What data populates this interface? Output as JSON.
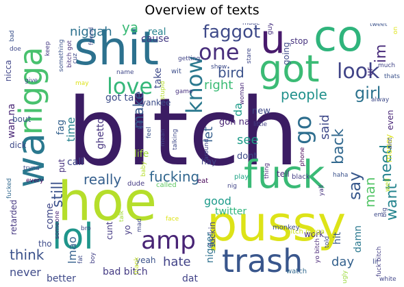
{
  "title": "Overview of texts",
  "words": [
    {
      "text": "bitch",
      "color": "#3b1c63"
    },
    {
      "text": "pussy",
      "color": "#dde318"
    },
    {
      "text": "hoe",
      "color": "#b5de2b"
    },
    {
      "text": "co",
      "color": "#2fb47c"
    },
    {
      "text": "u",
      "color": "#481a6c"
    },
    {
      "text": "shit",
      "color": "#2c718e"
    },
    {
      "text": "got",
      "color": "#3bbb75"
    },
    {
      "text": "fuck",
      "color": "#3aba76"
    },
    {
      "text": "nigga",
      "color": "#48c16e"
    },
    {
      "text": "wa",
      "color": "#2a788e"
    },
    {
      "text": "lol",
      "color": "#1f958b"
    },
    {
      "text": "trash",
      "color": "#39568c"
    },
    {
      "text": "amp",
      "color": "#482475"
    },
    {
      "text": "one",
      "color": "#472d7b"
    },
    {
      "text": "faggot",
      "color": "#3e4a89"
    },
    {
      "text": "love",
      "color": "#35b779"
    },
    {
      "text": "know",
      "color": "#2a788e"
    },
    {
      "text": "look",
      "color": "#404387"
    },
    {
      "text": "go",
      "color": "#2e6e8e"
    },
    {
      "text": "im",
      "color": "#472a7a"
    },
    {
      "text": "girl",
      "color": "#2c728e"
    },
    {
      "text": "people",
      "color": "#21918c"
    },
    {
      "text": "bird",
      "color": "#3b528b"
    },
    {
      "text": "niggah",
      "color": "#2c718e"
    },
    {
      "text": "ya",
      "color": "#3aba76"
    },
    {
      "text": "say",
      "color": "#38588c"
    },
    {
      "text": "want",
      "color": "#25848e"
    },
    {
      "text": "need",
      "color": "#25838e"
    },
    {
      "text": "man",
      "color": "#54c568"
    },
    {
      "text": "back",
      "color": "#31688e"
    },
    {
      "text": "said",
      "color": "#3e4989"
    },
    {
      "text": "really",
      "color": "#355f8d"
    },
    {
      "text": "fucking",
      "color": "#31668e"
    },
    {
      "text": "still",
      "color": "#3b528b"
    },
    {
      "text": "think",
      "color": "#3b528b"
    },
    {
      "text": "make",
      "color": "#375a8c"
    },
    {
      "text": "right",
      "color": "#3bbb75"
    },
    {
      "text": "let",
      "color": "#355f8d"
    },
    {
      "text": "see",
      "color": "#1e9c89"
    },
    {
      "text": "time",
      "color": "#26828e"
    },
    {
      "text": "hate",
      "color": "#414287"
    },
    {
      "text": "never",
      "color": "#3e4a89"
    },
    {
      "text": "good",
      "color": "#1e9b8a"
    },
    {
      "text": "day",
      "color": "#34618d"
    },
    {
      "text": "lmao",
      "color": "#35608d"
    },
    {
      "text": "nigger",
      "color": "#2d708e"
    },
    {
      "text": "wan na",
      "color": "#482576"
    },
    {
      "text": "fag",
      "color": "#34618d"
    },
    {
      "text": "call",
      "color": "#3f4889"
    },
    {
      "text": "life",
      "color": "#a2da37"
    },
    {
      "text": "dont",
      "color": "#3e4a89"
    },
    {
      "text": "tell",
      "color": "#472c7a"
    },
    {
      "text": "come",
      "color": "#3f4788"
    },
    {
      "text": "bad bitch",
      "color": "#443a83"
    },
    {
      "text": "better",
      "color": "#3e4989"
    },
    {
      "text": "damn",
      "color": "#2a788e"
    },
    {
      "text": "hit",
      "color": "#38588c"
    },
    {
      "text": "dat",
      "color": "#414287"
    },
    {
      "text": "twitter",
      "color": "#2fb47c"
    },
    {
      "text": "cause",
      "color": "#443983"
    },
    {
      "text": "real",
      "color": "#26828e"
    },
    {
      "text": "take",
      "color": "#3e4a89"
    },
    {
      "text": "got ta",
      "color": "#3d4d8a"
    },
    {
      "text": "yankee",
      "color": "#3d4e8a"
    },
    {
      "text": "ghetto",
      "color": "#46337f"
    },
    {
      "text": "gon na",
      "color": "#482475"
    },
    {
      "text": "new",
      "color": "#3f4889"
    },
    {
      "text": "stop",
      "color": "#46327e"
    },
    {
      "text": "going",
      "color": "#3e4a89"
    },
    {
      "text": "bout",
      "color": "#3b528b"
    },
    {
      "text": "dick",
      "color": "#3e4a89"
    },
    {
      "text": "retarded",
      "color": "#453781"
    },
    {
      "text": "tho",
      "color": "#3e4c8a"
    },
    {
      "text": "even",
      "color": "#482677"
    },
    {
      "text": "money",
      "color": "#dde318"
    },
    {
      "text": "yeah",
      "color": "#3b528b"
    },
    {
      "text": "hay",
      "color": "#414487"
    },
    {
      "text": "put",
      "color": "#46307e"
    },
    {
      "text": "yo",
      "color": "#443983"
    },
    {
      "text": "cunt",
      "color": "#443983"
    },
    {
      "text": "fuckin",
      "color": "#414487"
    },
    {
      "text": "da",
      "color": "#1e9c89"
    },
    {
      "text": "nicca",
      "color": "#404588"
    },
    {
      "text": "work",
      "color": "#46307e"
    },
    {
      "text": "ur",
      "color": "#482979"
    },
    {
      "text": "bitch nigga",
      "color": "#cde11d"
    },
    {
      "text": "monkey",
      "color": "#3e4c8a"
    },
    {
      "text": "black",
      "color": "#433e85"
    },
    {
      "text": "eat",
      "color": "#440154"
    },
    {
      "text": "play",
      "color": "#20a486"
    },
    {
      "text": "called",
      "color": "#5ec962"
    },
    {
      "text": "dude",
      "color": "#443a83"
    },
    {
      "text": "watch",
      "color": "#31688e"
    },
    {
      "text": "white",
      "color": "#404588"
    },
    {
      "text": "friend",
      "color": "#3e4989"
    },
    {
      "text": "tweet",
      "color": "#3b528b"
    },
    {
      "text": "made",
      "color": "#3f4889"
    },
    {
      "text": "guy",
      "color": "#46307e"
    },
    {
      "text": "stupid",
      "color": "#b5de2b"
    },
    {
      "text": "show",
      "color": "#3e4c8a"
    },
    {
      "text": "woman",
      "color": "#482878"
    },
    {
      "text": "game",
      "color": "#46307e"
    },
    {
      "text": "phone",
      "color": "#440154"
    },
    {
      "text": "little",
      "color": "#424086"
    },
    {
      "text": "thing",
      "color": "#482677"
    },
    {
      "text": "much",
      "color": "#414487"
    },
    {
      "text": "thats",
      "color": "#3b528b"
    },
    {
      "text": "alway",
      "color": "#3e4a89"
    },
    {
      "text": "aint",
      "color": "#3d4e8a"
    },
    {
      "text": "lil",
      "color": "#3e4c8a"
    },
    {
      "text": "em",
      "color": "#3e4989"
    },
    {
      "text": "haha",
      "color": "#3b528b"
    },
    {
      "text": "yall",
      "color": "#46327e"
    },
    {
      "text": "fuck bitch",
      "color": "#433e85"
    },
    {
      "text": "yo bitch",
      "color": "#482677"
    },
    {
      "text": "told",
      "color": "#3f4889"
    },
    {
      "text": "ugly",
      "color": "#9bd93c"
    },
    {
      "text": "face",
      "color": "#dde318"
    },
    {
      "text": "mad",
      "color": "#3f4788"
    },
    {
      "text": "talk",
      "color": "#a2da37"
    },
    {
      "text": "boy",
      "color": "#424086"
    },
    {
      "text": "fat",
      "color": "#3e4a89"
    },
    {
      "text": "bro",
      "color": "#3f4788"
    },
    {
      "text": "every",
      "color": "#440154"
    },
    {
      "text": "tryna",
      "color": "#3e4c8a"
    },
    {
      "text": "fucked",
      "color": "#31688e"
    },
    {
      "text": "kid",
      "color": "#3b528b"
    },
    {
      "text": "baby",
      "color": "#b5de2b"
    },
    {
      "text": "mean",
      "color": "#414487"
    },
    {
      "text": "feel",
      "color": "#3b528b"
    },
    {
      "text": "talking",
      "color": "#3e4a89"
    },
    {
      "text": "around",
      "color": "#3f4889"
    },
    {
      "text": "wit",
      "color": "#3d4e8a"
    },
    {
      "text": "getting",
      "color": "#414487"
    },
    {
      "text": "name",
      "color": "#3f4788"
    },
    {
      "text": "give",
      "color": "#3e4c8a"
    },
    {
      "text": "may",
      "color": "#dde318"
    },
    {
      "text": "keep",
      "color": "#443983"
    },
    {
      "text": "doe",
      "color": "#3f4889"
    },
    {
      "text": "someone",
      "color": "#482475"
    },
    {
      "text": "thank",
      "color": "#c2df23"
    },
    {
      "text": "big",
      "color": "#3e4989"
    },
    {
      "text": "nig",
      "color": "#414487"
    },
    {
      "text": "something",
      "color": "#3b528b"
    },
    {
      "text": "bitch got",
      "color": "#46307e"
    },
    {
      "text": "cuz",
      "color": "#3e4a89"
    },
    {
      "text": "well",
      "color": "#b5de2b"
    },
    {
      "text": "stare",
      "color": "#3f4889"
    },
    {
      "text": "bad",
      "color": "#3b528b"
    },
    {
      "text": "on",
      "color": "#dde318"
    }
  ]
}
